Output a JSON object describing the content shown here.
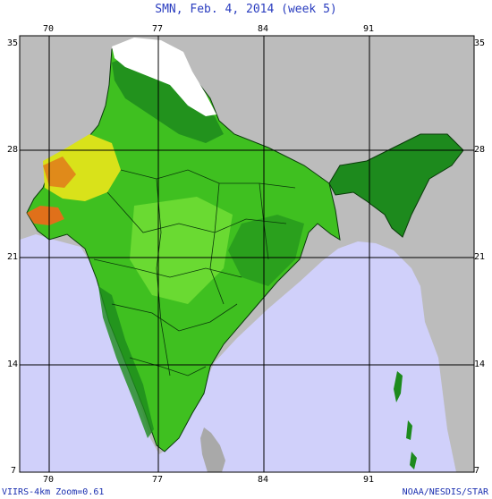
{
  "title": "SMN, Feb. 4, 2014 (week 5)",
  "axes": {
    "lon_ticks": [
      "70",
      "77",
      "84",
      "91"
    ],
    "lat_ticks": [
      "35",
      "28",
      "21",
      "14",
      "7"
    ]
  },
  "footer": {
    "left": "VIIRS-4km Zoom=0.61",
    "right": "NOAA/NESDIS/STAR"
  },
  "colors": {
    "ocean": "#d0d0fa",
    "land_outside": "#bcbcbc",
    "vegetation_dense": "#1d8a1d",
    "vegetation_medium": "#3fc020",
    "vegetation_light": "#7ee63a",
    "dry": "#d9e21a",
    "desert": "#e08a1a",
    "snow": "#ffffff",
    "grid": "#000000"
  }
}
